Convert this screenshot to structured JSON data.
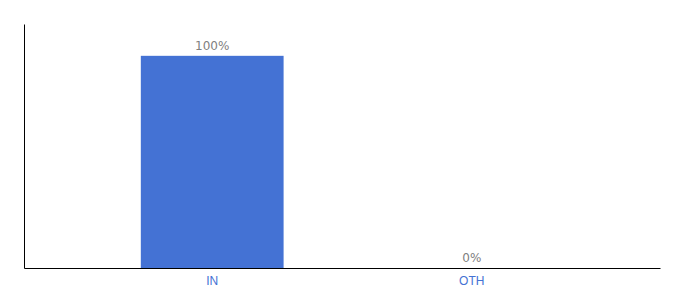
{
  "chart_data": {
    "type": "bar",
    "categories": [
      "IN",
      "OTH"
    ],
    "values": [
      100,
      0
    ],
    "value_labels": [
      "100%",
      "0%"
    ],
    "color": "#4472D4",
    "ylim": [
      0,
      115
    ],
    "data_labels": true,
    "tick_labels": "x",
    "grid": false
  }
}
